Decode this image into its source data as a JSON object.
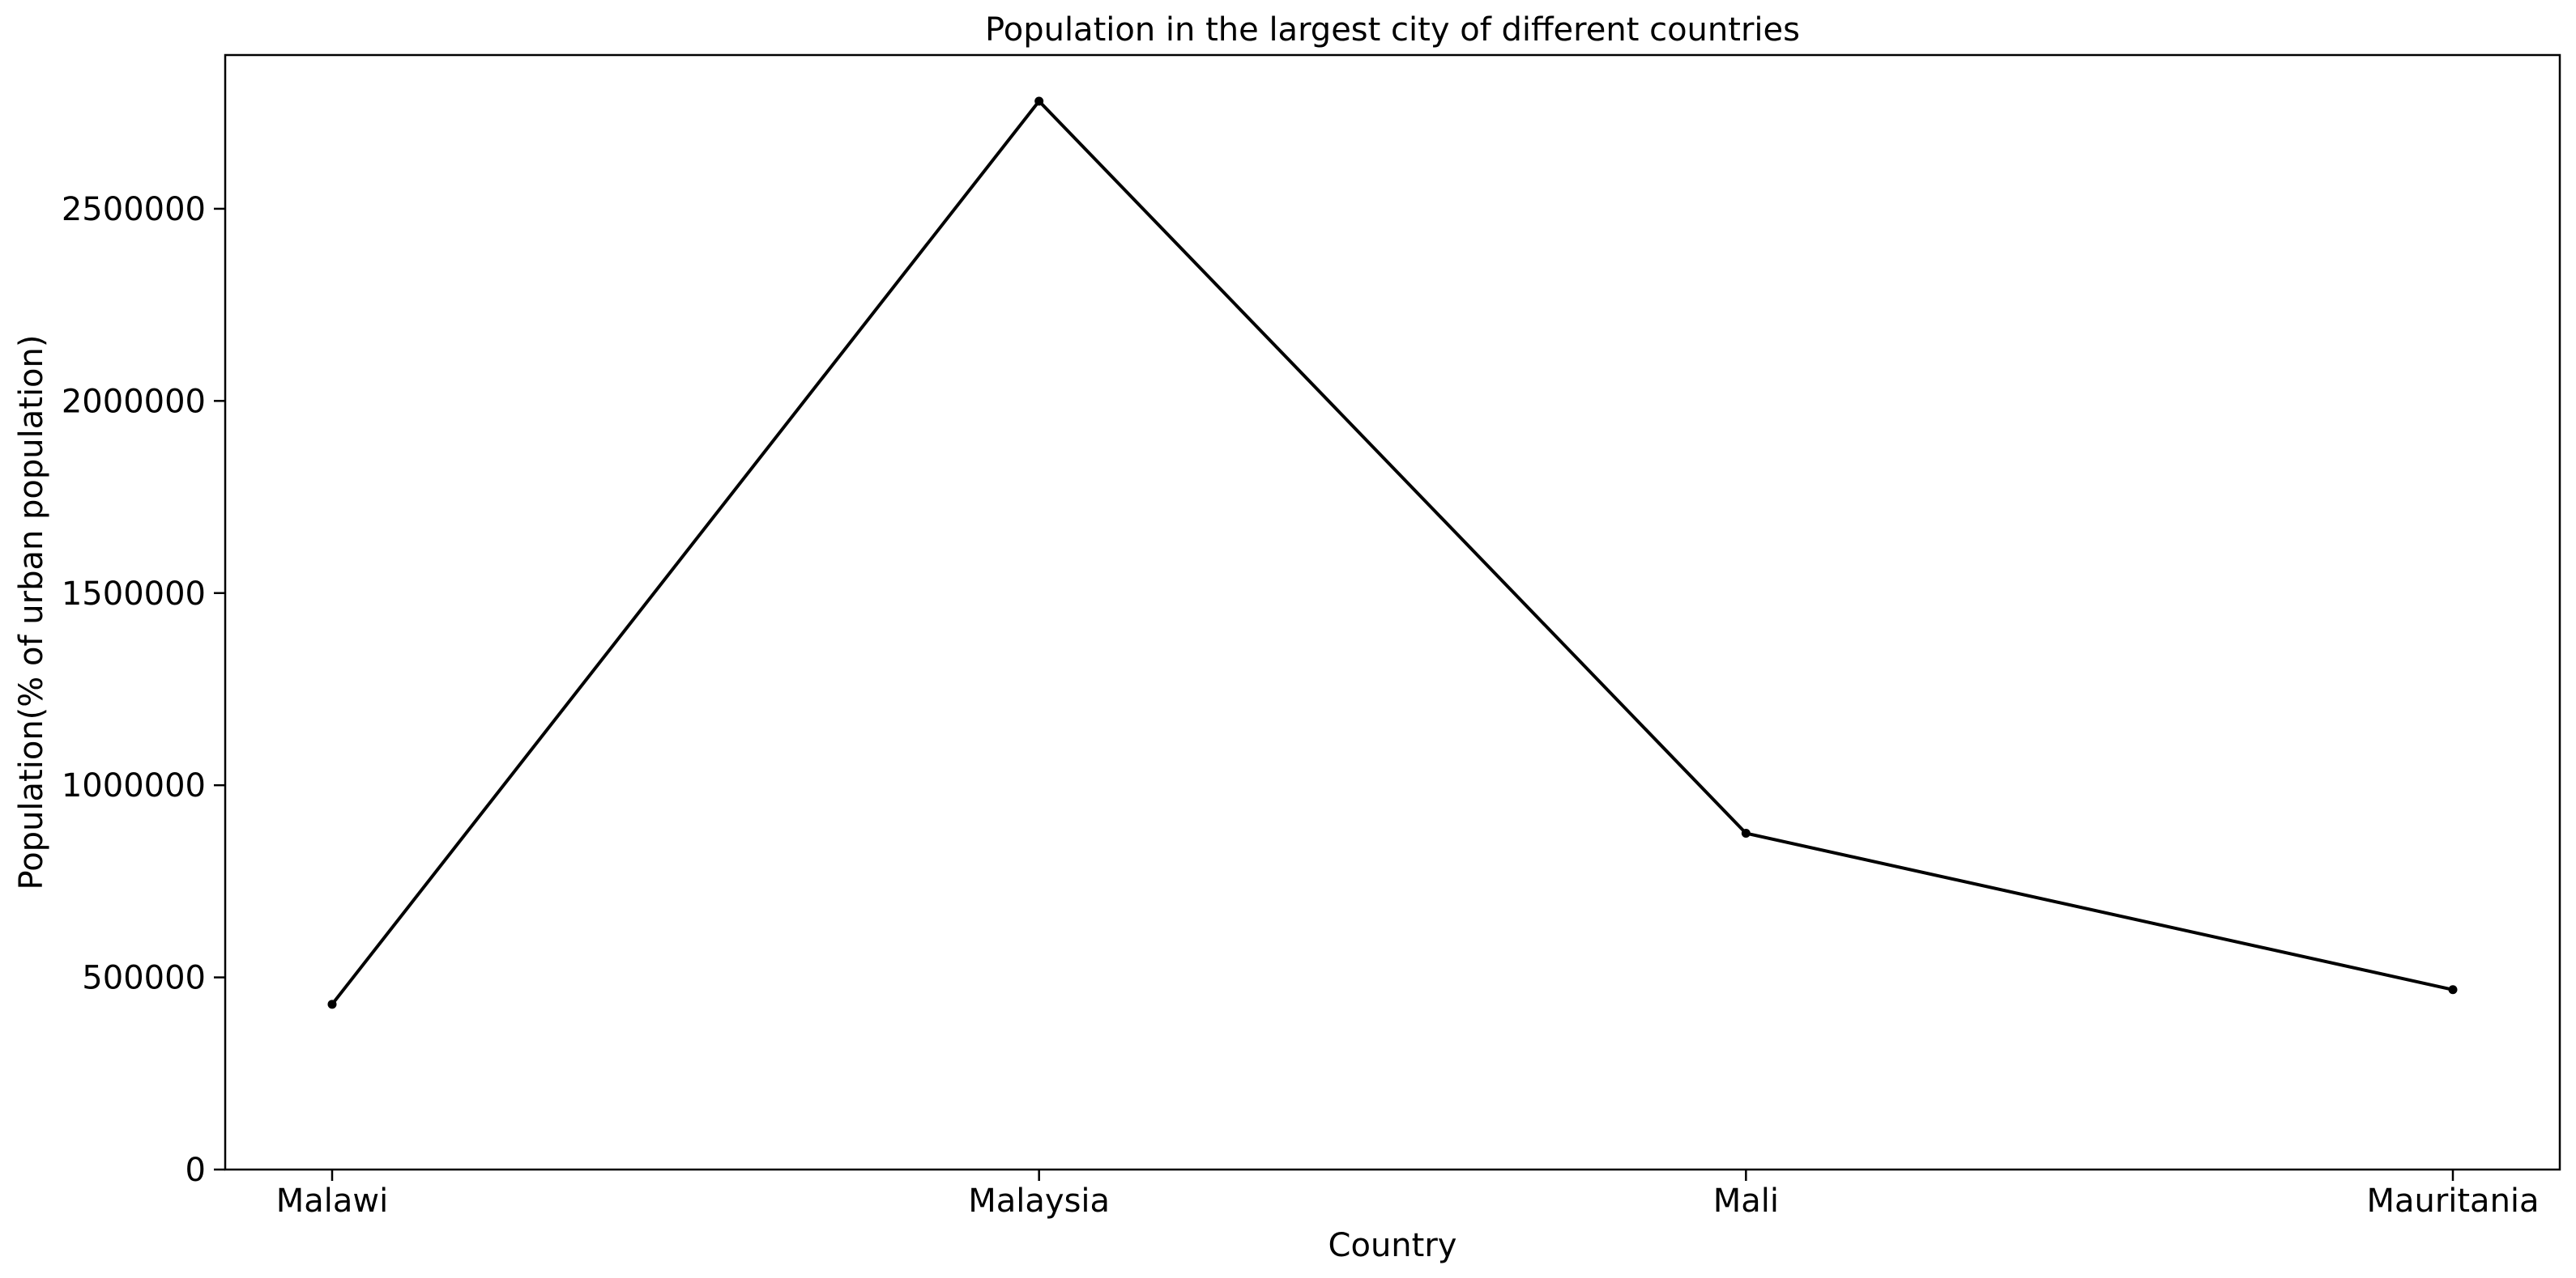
{
  "chart_data": {
    "type": "line",
    "title": "Population in the largest city of different countries",
    "xlabel": "Country",
    "ylabel": "Population(% of urban population)",
    "categories": [
      "Malawi",
      "Malaysia",
      "Mali",
      "Mauritania"
    ],
    "series": [
      {
        "values": [
          430000,
          2780000,
          875000,
          468000
        ],
        "color": "#000000",
        "marker": "dot"
      }
    ],
    "ylim": [
      0,
      2900000
    ],
    "yticks": [
      0,
      500000,
      1000000,
      1500000,
      2000000,
      2500000
    ],
    "ytick_labels": [
      "0",
      "500000",
      "1000000",
      "1500000",
      "2000000",
      "2500000"
    ],
    "grid": false,
    "legend": "none"
  }
}
